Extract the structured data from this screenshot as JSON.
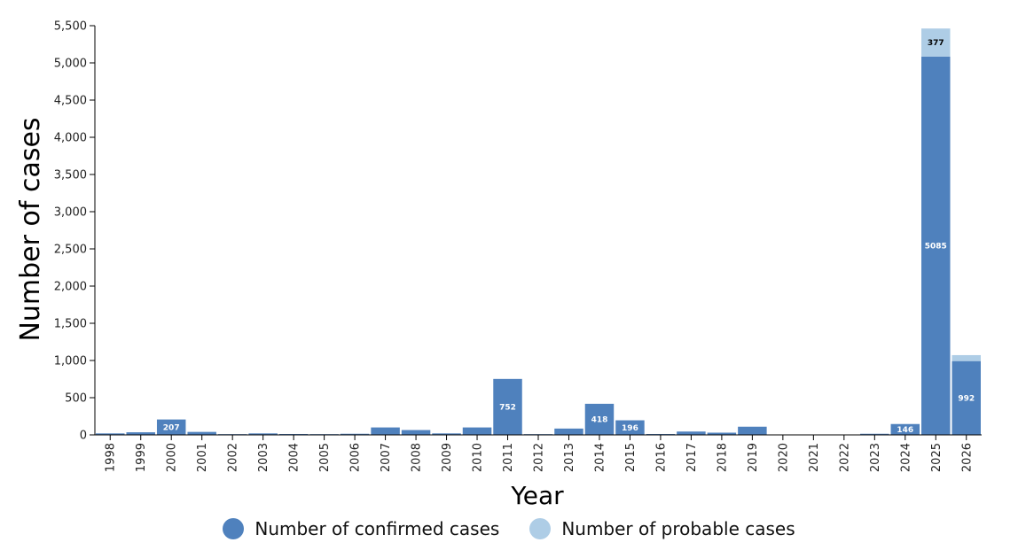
{
  "chart_data": {
    "type": "bar",
    "stacked": true,
    "xlabel": "Year",
    "ylabel": "Number of cases",
    "ylim": [
      0,
      5500
    ],
    "yticks": [
      0,
      500,
      1000,
      1500,
      2000,
      2500,
      3000,
      3500,
      4000,
      4500,
      5000,
      5500
    ],
    "ytick_labels": [
      "0",
      "500",
      "1,000",
      "1,500",
      "2,000",
      "2,500",
      "3,000",
      "3,500",
      "4,000",
      "4,500",
      "5,000",
      "5,500"
    ],
    "categories": [
      "1998",
      "1999",
      "2000",
      "2001",
      "2002",
      "2003",
      "2004",
      "2005",
      "2006",
      "2007",
      "2008",
      "2009",
      "2010",
      "2011",
      "2012",
      "2013",
      "2014",
      "2015",
      "2016",
      "2017",
      "2018",
      "2019",
      "2020",
      "2021",
      "2022",
      "2023",
      "2024",
      "2025",
      "2026"
    ],
    "series": [
      {
        "name": "Number of confirmed cases",
        "color": "#4f81bd",
        "label_color": "#ffffff",
        "values": [
          20,
          35,
          207,
          40,
          10,
          20,
          12,
          10,
          15,
          100,
          65,
          20,
          100,
          752,
          10,
          85,
          418,
          196,
          12,
          45,
          30,
          110,
          0,
          0,
          0,
          15,
          146,
          5085,
          992
        ],
        "data_labels": [
          null,
          null,
          "207",
          null,
          null,
          null,
          null,
          null,
          null,
          null,
          null,
          null,
          null,
          "752",
          null,
          null,
          "418",
          "196",
          null,
          null,
          null,
          null,
          null,
          null,
          null,
          null,
          "146",
          "5085",
          "992"
        ]
      },
      {
        "name": "Number of probable cases",
        "color": "#aecde6",
        "label_color": "#000000",
        "values": [
          0,
          0,
          0,
          0,
          0,
          0,
          0,
          0,
          0,
          0,
          0,
          0,
          0,
          0,
          0,
          0,
          0,
          0,
          0,
          0,
          0,
          0,
          0,
          0,
          0,
          0,
          0,
          377,
          80
        ],
        "data_labels": [
          null,
          null,
          null,
          null,
          null,
          null,
          null,
          null,
          null,
          null,
          null,
          null,
          null,
          null,
          null,
          null,
          null,
          null,
          null,
          null,
          null,
          null,
          null,
          null,
          null,
          null,
          null,
          "377",
          null
        ]
      }
    ],
    "legend": "bottom-center",
    "grid": false
  }
}
